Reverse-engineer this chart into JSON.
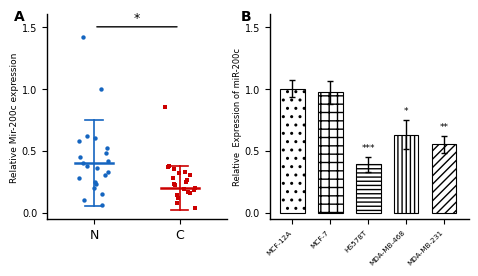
{
  "panel_A": {
    "title": "A",
    "ylabel": "Relative Mir-200c expression",
    "ylim": [
      -0.05,
      1.6
    ],
    "yticks": [
      0.0,
      0.5,
      1.0,
      1.5
    ],
    "groups": [
      "N",
      "C"
    ],
    "means": [
      0.4,
      0.2
    ],
    "stds": [
      0.35,
      0.18
    ],
    "N_dots": [
      1.42,
      1.0,
      0.62,
      0.6,
      0.58,
      0.52,
      0.48,
      0.45,
      0.42,
      0.4,
      0.38,
      0.36,
      0.33,
      0.3,
      0.28,
      0.25,
      0.23,
      0.2,
      0.15,
      0.1,
      0.06
    ],
    "C_dots": [
      0.85,
      0.38,
      0.37,
      0.35,
      0.33,
      0.32,
      0.3,
      0.28,
      0.26,
      0.25,
      0.23,
      0.22,
      0.2,
      0.19,
      0.18,
      0.17,
      0.16,
      0.14,
      0.12,
      0.08,
      0.04
    ],
    "N_color": "#1565C0",
    "C_color": "#CC0000",
    "significance": "*"
  },
  "panel_B": {
    "title": "B",
    "ylabel": "Relative  Expression of miR-200c",
    "ylim": [
      -0.05,
      1.6
    ],
    "yticks": [
      0.0,
      0.5,
      1.0,
      1.5
    ],
    "categories": [
      "MCF-12A",
      "MCF-7",
      "HS578T",
      "MDA-MB-468",
      "MDA-MB-231"
    ],
    "values": [
      1.0,
      0.97,
      0.39,
      0.63,
      0.55
    ],
    "errors": [
      0.07,
      0.09,
      0.06,
      0.12,
      0.07
    ],
    "significance": [
      "",
      "",
      "***",
      "*",
      "**"
    ],
    "hatches": [
      "..",
      "++",
      "---",
      "|||",
      "///"
    ]
  },
  "background_color": "#ffffff"
}
